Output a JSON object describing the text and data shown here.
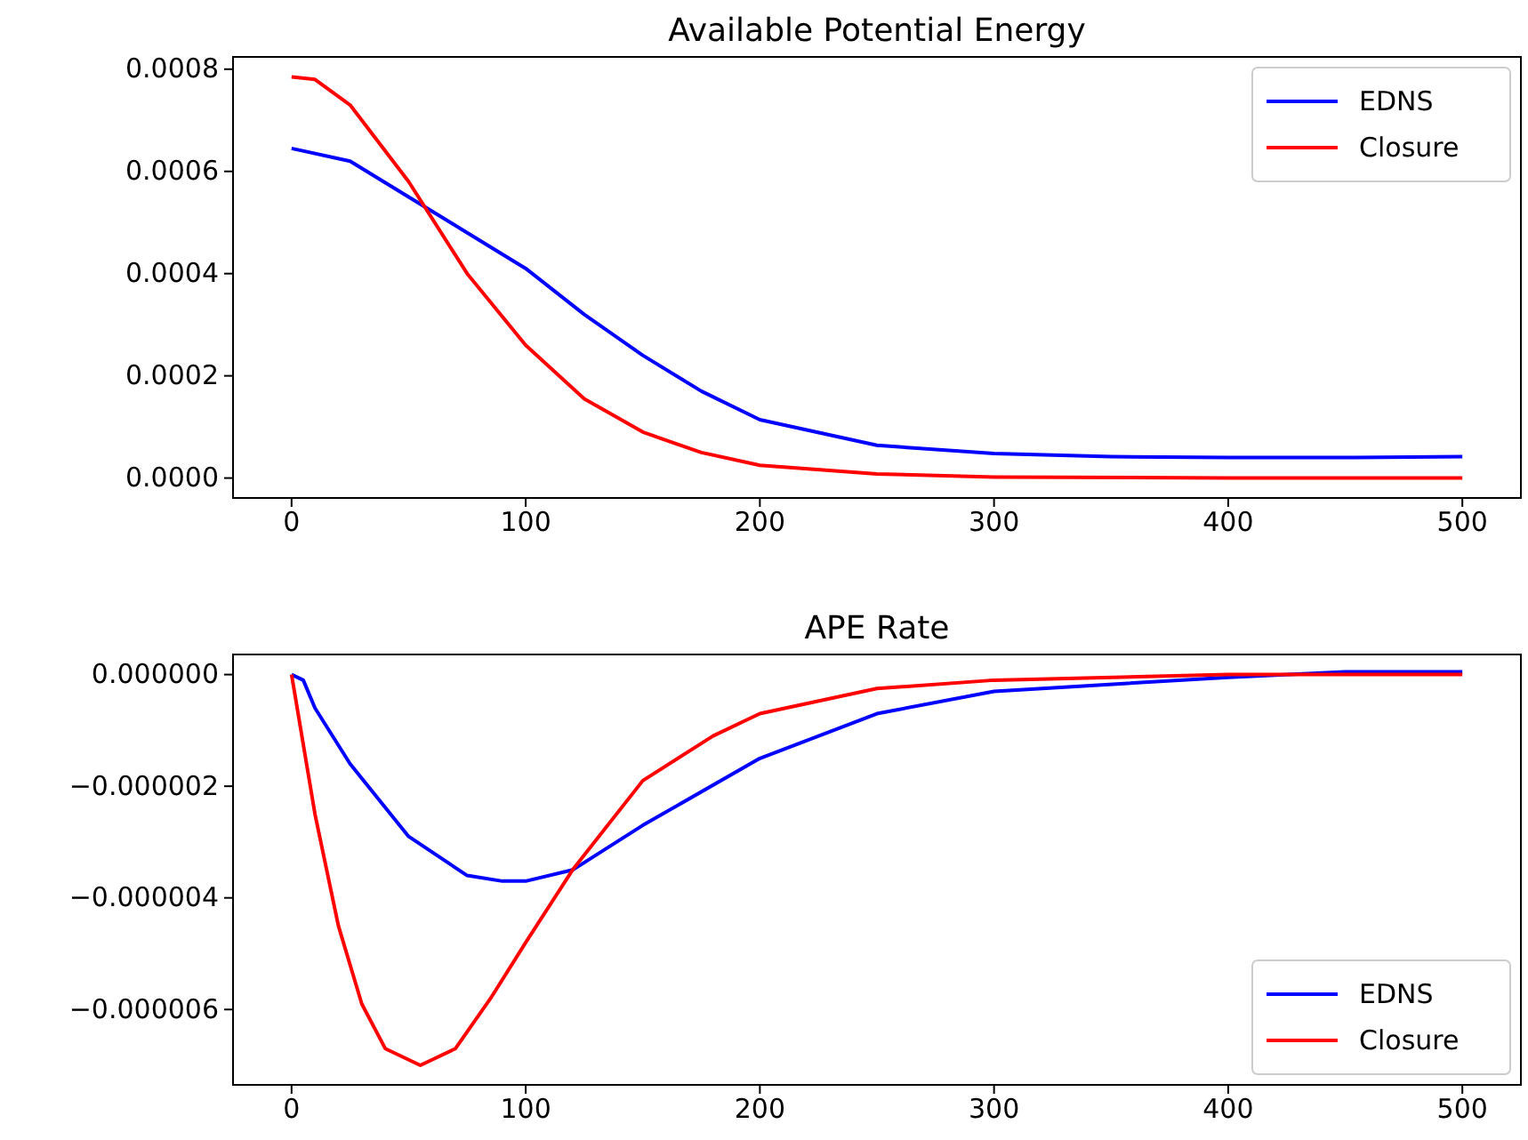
{
  "chart_data": [
    {
      "type": "line",
      "title": "Available Potential Energy",
      "xlim": [
        -25,
        525
      ],
      "xticks": [
        0,
        100,
        200,
        300,
        400,
        500
      ],
      "ylim": [
        -3.9e-05,
        0.000824
      ],
      "yticks": [
        {
          "value": 0,
          "label": "0.0000"
        },
        {
          "value": 0.0002,
          "label": "0.0002"
        },
        {
          "value": 0.0004,
          "label": "0.0004"
        },
        {
          "value": 0.0006,
          "label": "0.0006"
        },
        {
          "value": 0.0008,
          "label": "0.0008"
        }
      ],
      "grid": false,
      "legend": "top right",
      "line_style": "solid",
      "marker": "none",
      "series": [
        {
          "name": "EDNS",
          "color": "#0000ff",
          "x": [
            0,
            25,
            50,
            75,
            100,
            125,
            150,
            175,
            200,
            250,
            300,
            350,
            400,
            450,
            500
          ],
          "values": [
            0.000645,
            0.00062,
            0.00055,
            0.00048,
            0.00041,
            0.00032,
            0.00024,
            0.00017,
            0.000114,
            6.4e-05,
            4.8e-05,
            4.2e-05,
            4e-05,
            4e-05,
            4.2e-05
          ]
        },
        {
          "name": "Closure",
          "color": "#ff0000",
          "x": [
            0,
            10,
            25,
            50,
            75,
            100,
            125,
            150,
            175,
            200,
            250,
            300,
            400,
            500
          ],
          "values": [
            0.000785,
            0.00078,
            0.00073,
            0.00058,
            0.0004,
            0.00026,
            0.000155,
            9e-05,
            5e-05,
            2.5e-05,
            8e-06,
            2e-06,
            0,
            0
          ]
        }
      ]
    },
    {
      "type": "line",
      "title": "APE Rate",
      "xlim": [
        -25,
        525
      ],
      "xticks": [
        0,
        100,
        200,
        300,
        400,
        500
      ],
      "ylim": [
        -7.35e-06,
        3.6e-07
      ],
      "yticks": [
        {
          "value": -6e-06,
          "label": "−0.000006"
        },
        {
          "value": -4e-06,
          "label": "−0.000004"
        },
        {
          "value": -2e-06,
          "label": "−0.000002"
        },
        {
          "value": 0,
          "label": "0.000000"
        }
      ],
      "grid": false,
      "legend": "bottom right",
      "line_style": "solid",
      "marker": "none",
      "series": [
        {
          "name": "EDNS",
          "color": "#0000ff",
          "x": [
            0,
            5,
            10,
            25,
            50,
            75,
            90,
            100,
            120,
            150,
            200,
            250,
            300,
            400,
            450,
            500
          ],
          "values": [
            0,
            -1e-07,
            -6e-07,
            -1.6e-06,
            -2.9e-06,
            -3.6e-06,
            -3.7e-06,
            -3.7e-06,
            -3.5e-06,
            -2.7e-06,
            -1.5e-06,
            -7e-07,
            -3e-07,
            -5e-08,
            5e-08,
            5e-08
          ]
        },
        {
          "name": "Closure",
          "color": "#ff0000",
          "x": [
            0,
            10,
            20,
            30,
            40,
            55,
            70,
            85,
            100,
            120,
            150,
            180,
            200,
            250,
            300,
            400,
            500
          ],
          "values": [
            0,
            -2.5e-06,
            -4.5e-06,
            -5.9e-06,
            -6.7e-06,
            -7e-06,
            -6.7e-06,
            -5.8e-06,
            -4.8e-06,
            -3.5e-06,
            -1.9e-06,
            -1.1e-06,
            -7e-07,
            -2.5e-07,
            -1e-07,
            0,
            0
          ]
        }
      ]
    }
  ]
}
